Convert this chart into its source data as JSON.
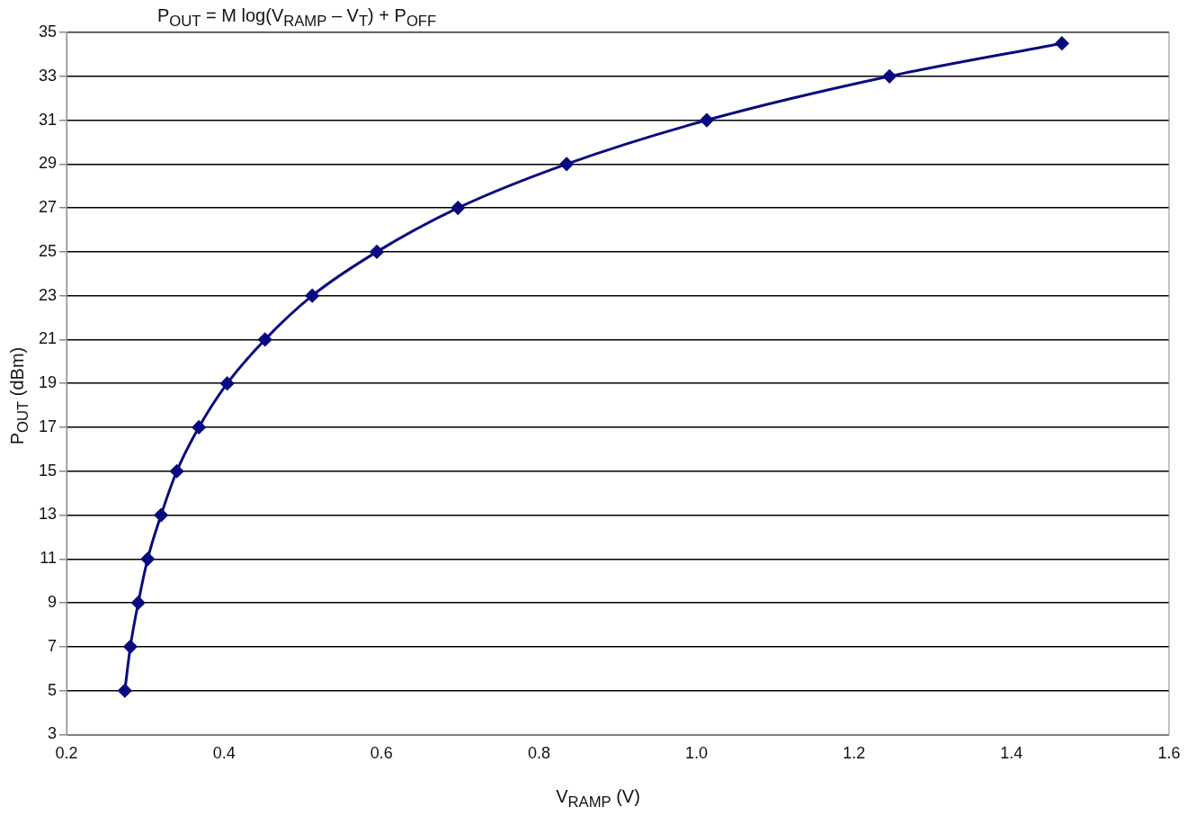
{
  "chart_data": {
    "type": "line",
    "title": "P$_{OUT}$ = M log(V$_{RAMP}$ – V$_{T}$) + P$_{OFF}$",
    "xlabel": "V$_{RAMP}$ (V)",
    "ylabel": "P$_{OUT}$ (dBm)",
    "x": [
      0.274,
      0.281,
      0.291,
      0.303,
      0.32,
      0.34,
      0.368,
      0.404,
      0.452,
      0.512,
      0.594,
      0.697,
      0.835,
      1.013,
      1.245,
      1.464
    ],
    "series": [
      {
        "color": "#0a0a80",
        "values": [
          5,
          7,
          9,
          11,
          13,
          15,
          17,
          19,
          21,
          23,
          25,
          27,
          29,
          31,
          33,
          34.5
        ]
      }
    ],
    "xlim": [
      0.2,
      1.6
    ],
    "xticks": [
      0.2,
      0.4,
      0.6,
      0.8,
      {
        "value": 1,
        "label": "1.0"
      },
      1.2,
      1.4,
      1.6
    ],
    "ylim": [
      3,
      35
    ],
    "yticks": [
      3,
      5,
      7,
      9,
      11,
      13,
      15,
      17,
      19,
      21,
      23,
      25,
      27,
      29,
      31,
      33,
      35
    ],
    "grid": "y",
    "legend": false,
    "marker": "diamond",
    "line_style": "solid"
  }
}
